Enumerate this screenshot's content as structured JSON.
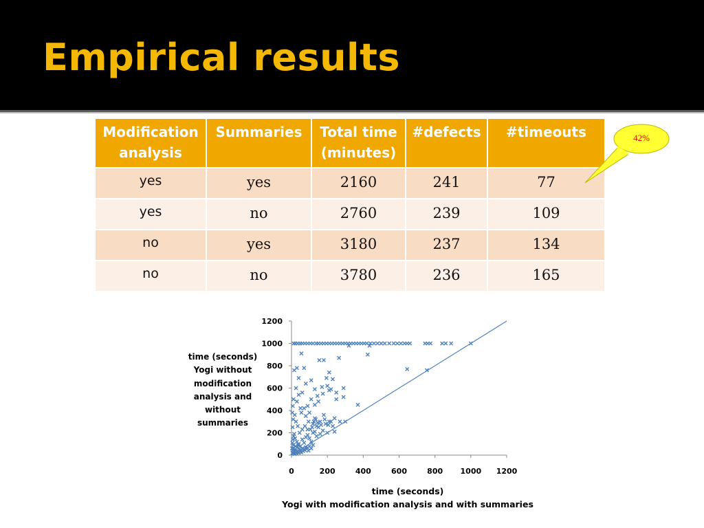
{
  "slide": {
    "title": "Empirical results"
  },
  "table": {
    "headers": [
      {
        "line1": "Modification",
        "line2": "analysis"
      },
      {
        "line1": "Summaries",
        "line2": ""
      },
      {
        "line1": "Total time",
        "line2": "(minutes)"
      },
      {
        "line1": "#defects",
        "line2": ""
      },
      {
        "line1": "#timeouts",
        "line2": ""
      }
    ],
    "rows": [
      {
        "modification": "yes",
        "summaries": "yes",
        "total_time": "2160",
        "defects": "241",
        "timeouts": "77"
      },
      {
        "modification": "yes",
        "summaries": "no",
        "total_time": "2760",
        "defects": "239",
        "timeouts": "109"
      },
      {
        "modification": "no",
        "summaries": "yes",
        "total_time": "3180",
        "defects": "237",
        "timeouts": "134"
      },
      {
        "modification": "no",
        "summaries": "no",
        "total_time": "3780",
        "defects": "236",
        "timeouts": "165"
      }
    ],
    "colors": {
      "header": "#f0a800",
      "row_odd": "#f9dcc4",
      "row_even": "#fcefe6"
    }
  },
  "callout": {
    "text": "42%",
    "fill": "#ffff33",
    "text_color": "#e00000"
  },
  "chart_data": {
    "type": "scatter",
    "xlabel_lines": [
      "time (seconds)",
      "Yogi with modification analysis and with summaries"
    ],
    "ylabel_lines": [
      "time (seconds)",
      "Yogi without",
      "modification",
      "analysis and",
      "without",
      "summaries"
    ],
    "xlim": [
      0,
      1200
    ],
    "ylim": [
      0,
      1200
    ],
    "xticks": [
      0,
      200,
      400,
      600,
      800,
      1000,
      1200
    ],
    "yticks": [
      0,
      200,
      400,
      600,
      800,
      1000,
      1200
    ],
    "marker": "x",
    "color": "#4f81bd",
    "grid": false,
    "reference_line": {
      "from": [
        0,
        0
      ],
      "to": [
        1200,
        1200
      ]
    },
    "points": [
      [
        12,
        1000
      ],
      [
        22,
        1000
      ],
      [
        35,
        1000
      ],
      [
        48,
        1000
      ],
      [
        60,
        1000
      ],
      [
        75,
        1000
      ],
      [
        90,
        1000
      ],
      [
        105,
        1000
      ],
      [
        120,
        1000
      ],
      [
        138,
        1000
      ],
      [
        150,
        1000
      ],
      [
        165,
        1000
      ],
      [
        180,
        1000
      ],
      [
        195,
        1000
      ],
      [
        210,
        1000
      ],
      [
        225,
        1000
      ],
      [
        240,
        1000
      ],
      [
        255,
        1000
      ],
      [
        270,
        1000
      ],
      [
        285,
        1000
      ],
      [
        300,
        1000
      ],
      [
        315,
        1000
      ],
      [
        330,
        1000
      ],
      [
        345,
        1000
      ],
      [
        360,
        1000
      ],
      [
        375,
        1000
      ],
      [
        390,
        1000
      ],
      [
        405,
        1000
      ],
      [
        420,
        1000
      ],
      [
        440,
        1000
      ],
      [
        460,
        1000
      ],
      [
        480,
        1000
      ],
      [
        500,
        1000
      ],
      [
        520,
        1000
      ],
      [
        545,
        1000
      ],
      [
        570,
        1000
      ],
      [
        590,
        1000
      ],
      [
        610,
        1000
      ],
      [
        630,
        1000
      ],
      [
        645,
        1000
      ],
      [
        660,
        1000
      ],
      [
        745,
        1000
      ],
      [
        760,
        1000
      ],
      [
        775,
        1000
      ],
      [
        840,
        1000
      ],
      [
        860,
        1000
      ],
      [
        890,
        1000
      ],
      [
        1000,
        1000
      ],
      [
        320,
        980
      ],
      [
        435,
        980
      ],
      [
        425,
        900
      ],
      [
        55,
        910
      ],
      [
        180,
        850
      ],
      [
        155,
        850
      ],
      [
        265,
        870
      ],
      [
        30,
        780
      ],
      [
        70,
        780
      ],
      [
        15,
        760
      ],
      [
        645,
        770
      ],
      [
        755,
        760
      ],
      [
        370,
        450
      ],
      [
        290,
        520
      ],
      [
        210,
        740
      ],
      [
        195,
        690
      ],
      [
        230,
        680
      ],
      [
        40,
        690
      ],
      [
        80,
        640
      ],
      [
        110,
        670
      ],
      [
        130,
        590
      ],
      [
        145,
        530
      ],
      [
        175,
        550
      ],
      [
        210,
        580
      ],
      [
        250,
        560
      ],
      [
        250,
        500
      ],
      [
        290,
        600
      ],
      [
        200,
        620
      ],
      [
        220,
        590
      ],
      [
        170,
        610
      ],
      [
        150,
        480
      ],
      [
        130,
        450
      ],
      [
        110,
        500
      ],
      [
        90,
        440
      ],
      [
        70,
        420
      ],
      [
        50,
        420
      ],
      [
        30,
        480
      ],
      [
        40,
        540
      ],
      [
        60,
        560
      ],
      [
        25,
        600
      ],
      [
        55,
        380
      ],
      [
        80,
        350
      ],
      [
        100,
        380
      ],
      [
        130,
        330
      ],
      [
        160,
        300
      ],
      [
        190,
        280
      ],
      [
        210,
        300
      ],
      [
        240,
        330
      ],
      [
        270,
        300
      ],
      [
        300,
        300
      ],
      [
        180,
        360
      ],
      [
        150,
        250
      ],
      [
        120,
        280
      ],
      [
        95,
        300
      ],
      [
        75,
        260
      ],
      [
        60,
        230
      ],
      [
        45,
        200
      ],
      [
        35,
        260
      ],
      [
        25,
        300
      ],
      [
        18,
        360
      ],
      [
        15,
        190
      ],
      [
        20,
        150
      ],
      [
        30,
        120
      ],
      [
        40,
        100
      ],
      [
        50,
        80
      ],
      [
        60,
        140
      ],
      [
        70,
        110
      ],
      [
        80,
        160
      ],
      [
        90,
        180
      ],
      [
        100,
        150
      ],
      [
        110,
        120
      ],
      [
        120,
        200
      ],
      [
        130,
        210
      ],
      [
        140,
        170
      ],
      [
        160,
        190
      ],
      [
        175,
        220
      ],
      [
        200,
        200
      ],
      [
        230,
        260
      ],
      [
        240,
        210
      ],
      [
        140,
        260
      ],
      [
        5,
        20
      ],
      [
        8,
        40
      ],
      [
        10,
        15
      ],
      [
        12,
        60
      ],
      [
        15,
        30
      ],
      [
        18,
        10
      ],
      [
        20,
        50
      ],
      [
        22,
        80
      ],
      [
        25,
        25
      ],
      [
        28,
        45
      ],
      [
        30,
        15
      ],
      [
        32,
        70
      ],
      [
        35,
        35
      ],
      [
        38,
        90
      ],
      [
        40,
        20
      ],
      [
        45,
        55
      ],
      [
        48,
        30
      ],
      [
        50,
        40
      ],
      [
        55,
        25
      ],
      [
        60,
        60
      ],
      [
        65,
        35
      ],
      [
        70,
        50
      ],
      [
        75,
        45
      ],
      [
        80,
        70
      ],
      [
        85,
        55
      ],
      [
        90,
        65
      ],
      [
        95,
        40
      ],
      [
        100,
        80
      ],
      [
        110,
        60
      ],
      [
        120,
        90
      ],
      [
        5,
        110
      ],
      [
        8,
        140
      ],
      [
        10,
        90
      ],
      [
        12,
        170
      ],
      [
        6,
        250
      ],
      [
        9,
        320
      ],
      [
        4,
        380
      ],
      [
        7,
        440
      ],
      [
        11,
        500
      ],
      [
        3,
        60
      ],
      [
        90,
        230
      ],
      [
        105,
        230
      ],
      [
        115,
        250
      ],
      [
        125,
        300
      ],
      [
        135,
        320
      ],
      [
        145,
        290
      ],
      [
        165,
        270
      ],
      [
        185,
        320
      ],
      [
        205,
        270
      ],
      [
        220,
        300
      ]
    ]
  }
}
